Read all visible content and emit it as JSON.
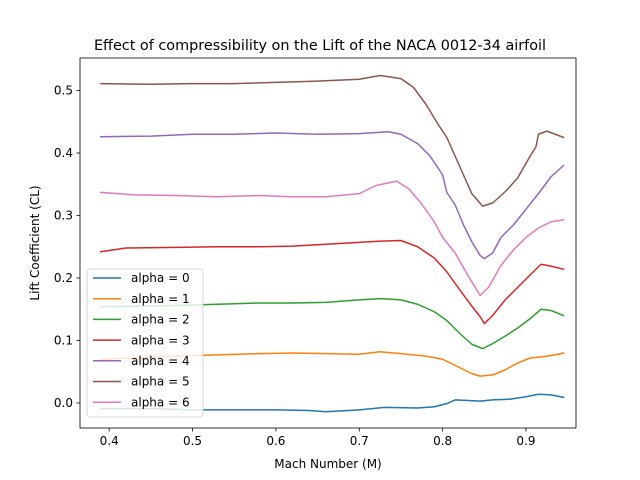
{
  "chart_data": {
    "type": "line",
    "title": "Effect of compressibility on the Lift of the NACA 0012-34 airfoil",
    "xlabel": "Mach Number (M)",
    "ylabel": "Lift Coefficient (CL)",
    "xlim": [
      0.365,
      0.96
    ],
    "ylim": [
      -0.04,
      0.552
    ],
    "xticks": [
      0.4,
      0.5,
      0.6,
      0.7,
      0.8,
      0.9
    ],
    "xtick_labels": [
      "0.4",
      "0.5",
      "0.6",
      "0.7",
      "0.8",
      "0.9"
    ],
    "yticks": [
      0.0,
      0.1,
      0.2,
      0.3,
      0.4,
      0.5
    ],
    "ytick_labels": [
      "0.0",
      "0.1",
      "0.2",
      "0.3",
      "0.4",
      "0.5"
    ],
    "grid": false,
    "legend_position": "lower-left",
    "series": [
      {
        "name": "alpha = 0",
        "color": "#1f77b4",
        "points": [
          [
            0.39,
            -0.009
          ],
          [
            0.45,
            -0.009
          ],
          [
            0.5,
            -0.011
          ],
          [
            0.55,
            -0.011
          ],
          [
            0.6,
            -0.011
          ],
          [
            0.64,
            -0.012
          ],
          [
            0.66,
            -0.014
          ],
          [
            0.7,
            -0.011
          ],
          [
            0.73,
            -0.007
          ],
          [
            0.77,
            -0.008
          ],
          [
            0.79,
            -0.006
          ],
          [
            0.805,
            -0.001
          ],
          [
            0.815,
            0.005
          ],
          [
            0.83,
            0.004
          ],
          [
            0.845,
            0.003
          ],
          [
            0.86,
            0.005
          ],
          [
            0.88,
            0.006
          ],
          [
            0.9,
            0.01
          ],
          [
            0.915,
            0.014
          ],
          [
            0.93,
            0.013
          ],
          [
            0.945,
            0.009
          ]
        ]
      },
      {
        "name": "alpha = 1",
        "color": "#ff7f0e",
        "points": [
          [
            0.39,
            0.07
          ],
          [
            0.43,
            0.072
          ],
          [
            0.48,
            0.075
          ],
          [
            0.53,
            0.077
          ],
          [
            0.58,
            0.079
          ],
          [
            0.62,
            0.08
          ],
          [
            0.66,
            0.079
          ],
          [
            0.7,
            0.078
          ],
          [
            0.725,
            0.082
          ],
          [
            0.75,
            0.079
          ],
          [
            0.78,
            0.075
          ],
          [
            0.8,
            0.07
          ],
          [
            0.82,
            0.057
          ],
          [
            0.835,
            0.047
          ],
          [
            0.845,
            0.043
          ],
          [
            0.86,
            0.045
          ],
          [
            0.875,
            0.053
          ],
          [
            0.89,
            0.064
          ],
          [
            0.905,
            0.072
          ],
          [
            0.92,
            0.074
          ],
          [
            0.935,
            0.077
          ],
          [
            0.945,
            0.08
          ]
        ]
      },
      {
        "name": "alpha = 2",
        "color": "#2ca02c",
        "points": [
          [
            0.39,
            0.154
          ],
          [
            0.43,
            0.155
          ],
          [
            0.48,
            0.156
          ],
          [
            0.53,
            0.158
          ],
          [
            0.58,
            0.16
          ],
          [
            0.62,
            0.16
          ],
          [
            0.66,
            0.161
          ],
          [
            0.7,
            0.165
          ],
          [
            0.725,
            0.167
          ],
          [
            0.75,
            0.165
          ],
          [
            0.77,
            0.158
          ],
          [
            0.79,
            0.146
          ],
          [
            0.805,
            0.132
          ],
          [
            0.82,
            0.112
          ],
          [
            0.835,
            0.094
          ],
          [
            0.848,
            0.087
          ],
          [
            0.86,
            0.095
          ],
          [
            0.875,
            0.107
          ],
          [
            0.89,
            0.12
          ],
          [
            0.905,
            0.135
          ],
          [
            0.918,
            0.15
          ],
          [
            0.93,
            0.148
          ],
          [
            0.945,
            0.14
          ]
        ]
      },
      {
        "name": "alpha = 3",
        "color": "#d62728",
        "points": [
          [
            0.39,
            0.242
          ],
          [
            0.42,
            0.248
          ],
          [
            0.48,
            0.249
          ],
          [
            0.53,
            0.25
          ],
          [
            0.58,
            0.25
          ],
          [
            0.62,
            0.251
          ],
          [
            0.66,
            0.254
          ],
          [
            0.7,
            0.257
          ],
          [
            0.725,
            0.259
          ],
          [
            0.75,
            0.26
          ],
          [
            0.77,
            0.25
          ],
          [
            0.79,
            0.232
          ],
          [
            0.805,
            0.21
          ],
          [
            0.82,
            0.182
          ],
          [
            0.835,
            0.155
          ],
          [
            0.845,
            0.138
          ],
          [
            0.85,
            0.127
          ],
          [
            0.86,
            0.14
          ],
          [
            0.875,
            0.165
          ],
          [
            0.89,
            0.185
          ],
          [
            0.905,
            0.205
          ],
          [
            0.918,
            0.222
          ],
          [
            0.93,
            0.219
          ],
          [
            0.945,
            0.214
          ]
        ]
      },
      {
        "name": "alpha = 4",
        "color": "#9467bd",
        "points": [
          [
            0.39,
            0.426
          ],
          [
            0.45,
            0.427
          ],
          [
            0.5,
            0.43
          ],
          [
            0.55,
            0.43
          ],
          [
            0.6,
            0.432
          ],
          [
            0.65,
            0.43
          ],
          [
            0.7,
            0.431
          ],
          [
            0.735,
            0.434
          ],
          [
            0.75,
            0.43
          ],
          [
            0.77,
            0.415
          ],
          [
            0.785,
            0.395
          ],
          [
            0.8,
            0.365
          ],
          [
            0.805,
            0.337
          ],
          [
            0.815,
            0.317
          ],
          [
            0.825,
            0.285
          ],
          [
            0.835,
            0.258
          ],
          [
            0.845,
            0.236
          ],
          [
            0.85,
            0.231
          ],
          [
            0.86,
            0.24
          ],
          [
            0.87,
            0.265
          ],
          [
            0.885,
            0.285
          ],
          [
            0.9,
            0.31
          ],
          [
            0.915,
            0.335
          ],
          [
            0.93,
            0.362
          ],
          [
            0.945,
            0.38
          ]
        ]
      },
      {
        "name": "alpha = 5",
        "color": "#8c564b",
        "points": [
          [
            0.39,
            0.511
          ],
          [
            0.45,
            0.51
          ],
          [
            0.5,
            0.511
          ],
          [
            0.55,
            0.511
          ],
          [
            0.6,
            0.513
          ],
          [
            0.65,
            0.515
          ],
          [
            0.7,
            0.518
          ],
          [
            0.725,
            0.524
          ],
          [
            0.75,
            0.519
          ],
          [
            0.765,
            0.505
          ],
          [
            0.78,
            0.478
          ],
          [
            0.795,
            0.445
          ],
          [
            0.805,
            0.425
          ],
          [
            0.815,
            0.395
          ],
          [
            0.825,
            0.365
          ],
          [
            0.835,
            0.335
          ],
          [
            0.848,
            0.315
          ],
          [
            0.86,
            0.32
          ],
          [
            0.875,
            0.338
          ],
          [
            0.89,
            0.36
          ],
          [
            0.905,
            0.395
          ],
          [
            0.912,
            0.41
          ],
          [
            0.915,
            0.43
          ],
          [
            0.925,
            0.435
          ],
          [
            0.935,
            0.43
          ],
          [
            0.945,
            0.425
          ]
        ]
      },
      {
        "name": "alpha = 6",
        "color": "#e377c2",
        "points": [
          [
            0.39,
            0.337
          ],
          [
            0.43,
            0.333
          ],
          [
            0.48,
            0.332
          ],
          [
            0.53,
            0.33
          ],
          [
            0.58,
            0.332
          ],
          [
            0.62,
            0.33
          ],
          [
            0.66,
            0.33
          ],
          [
            0.7,
            0.335
          ],
          [
            0.72,
            0.348
          ],
          [
            0.745,
            0.355
          ],
          [
            0.76,
            0.342
          ],
          [
            0.775,
            0.318
          ],
          [
            0.79,
            0.29
          ],
          [
            0.8,
            0.265
          ],
          [
            0.815,
            0.24
          ],
          [
            0.83,
            0.205
          ],
          [
            0.845,
            0.172
          ],
          [
            0.855,
            0.185
          ],
          [
            0.87,
            0.22
          ],
          [
            0.885,
            0.245
          ],
          [
            0.9,
            0.265
          ],
          [
            0.915,
            0.28
          ],
          [
            0.93,
            0.29
          ],
          [
            0.945,
            0.293
          ]
        ]
      }
    ]
  }
}
